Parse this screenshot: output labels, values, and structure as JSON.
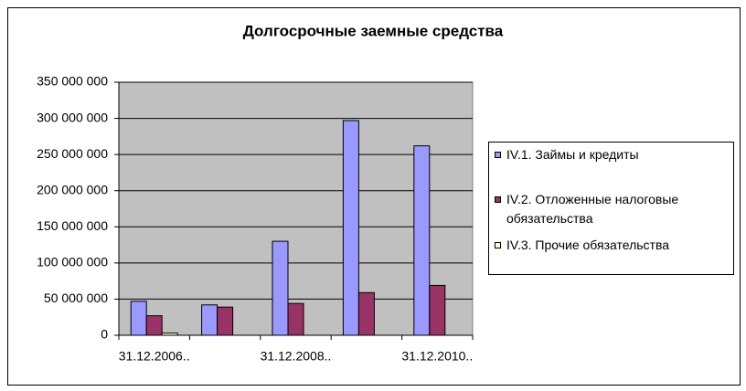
{
  "chart_data": {
    "type": "bar",
    "title": "Долгосрочные заемные средства",
    "categories": [
      "31.12.2006..",
      null,
      "31.12.2008..",
      null,
      "31.12.2010.."
    ],
    "series": [
      {
        "name": "IV.1. Займы и кредиты",
        "color": "#9999ff",
        "values": [
          47000000,
          42000000,
          130000000,
          297000000,
          262000000
        ]
      },
      {
        "name": "IV.2. Отложенные налоговые обязательства",
        "color": "#993366",
        "values": [
          27000000,
          39000000,
          44000000,
          59000000,
          69000000
        ]
      },
      {
        "name": "IV.3. Прочие обязательства",
        "color": "#ffffcc",
        "values": [
          3000000,
          0,
          0,
          0,
          0
        ]
      }
    ],
    "ylim": [
      0,
      350000000
    ],
    "yticks": [
      0,
      {
        "value": 50000000,
        "label": "50 000 000"
      },
      {
        "value": 100000000,
        "label": "100 000 000"
      },
      {
        "value": 150000000,
        "label": "150 000 000"
      },
      {
        "value": 200000000,
        "label": "200 000 000"
      },
      {
        "value": 250000000,
        "label": "250 000 000"
      },
      {
        "value": 300000000,
        "label": "300 000 000"
      },
      {
        "value": 350000000,
        "label": "350 000 000"
      }
    ],
    "grid": true
  }
}
